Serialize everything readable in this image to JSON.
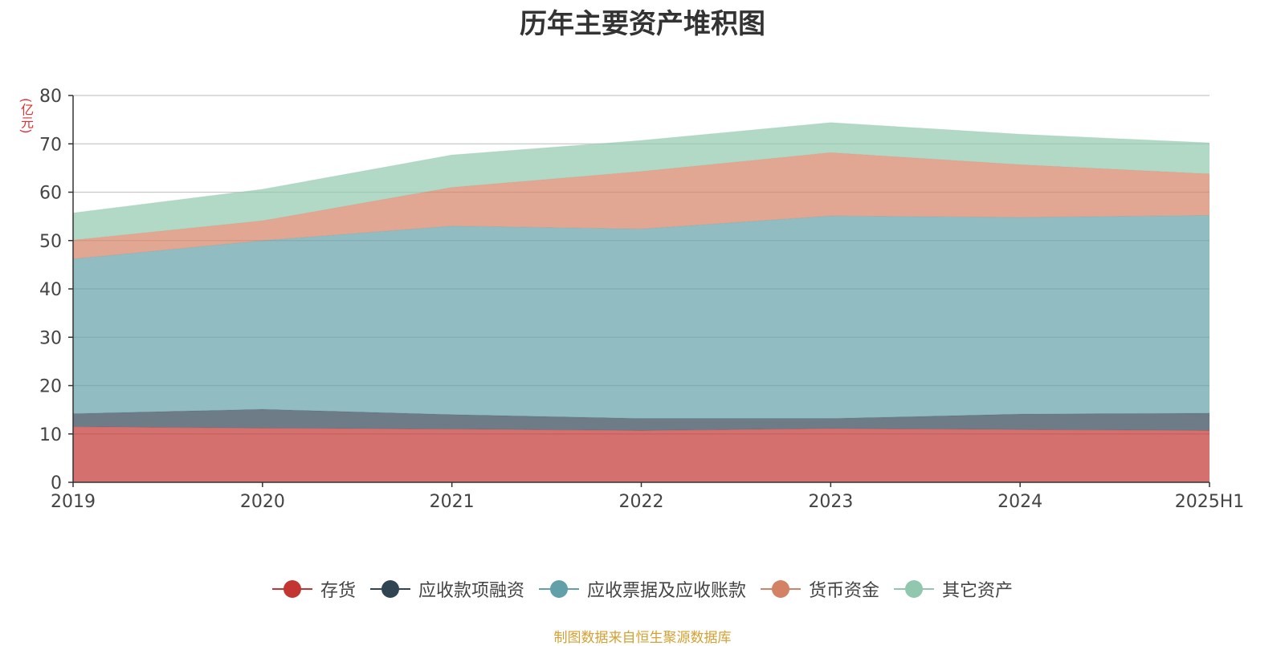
{
  "title": "历年主要资产堆积图",
  "y_unit": "(亿元)",
  "source_note": "制图数据来自恒生聚源数据库",
  "chart_data": {
    "type": "area",
    "stacked": true,
    "categories": [
      "2019",
      "2020",
      "2021",
      "2022",
      "2023",
      "2024",
      "2025H1"
    ],
    "ylim": [
      0,
      80
    ],
    "yticks": [
      0,
      10,
      20,
      30,
      40,
      50,
      60,
      70,
      80
    ],
    "grid": true,
    "legend_position": "bottom",
    "series": [
      {
        "name": "存货",
        "color": "#c23531",
        "values": [
          11.5,
          11.2,
          11.0,
          10.7,
          11.1,
          10.9,
          10.7
        ]
      },
      {
        "name": "应收款项融资",
        "color": "#2f4554",
        "values": [
          2.7,
          3.9,
          3.0,
          2.5,
          2.1,
          3.2,
          3.6
        ]
      },
      {
        "name": "应收票据及应收账款",
        "color": "#61a0a8",
        "values": [
          32.0,
          34.9,
          39.0,
          39.2,
          41.9,
          40.7,
          40.9
        ]
      },
      {
        "name": "货币资金",
        "color": "#d48265",
        "values": [
          3.9,
          4.1,
          8.0,
          11.9,
          13.1,
          10.9,
          8.6
        ]
      },
      {
        "name": "其它资产",
        "color": "#91c7ae",
        "values": [
          5.6,
          6.5,
          6.7,
          6.4,
          6.2,
          6.3,
          6.4
        ]
      }
    ]
  }
}
